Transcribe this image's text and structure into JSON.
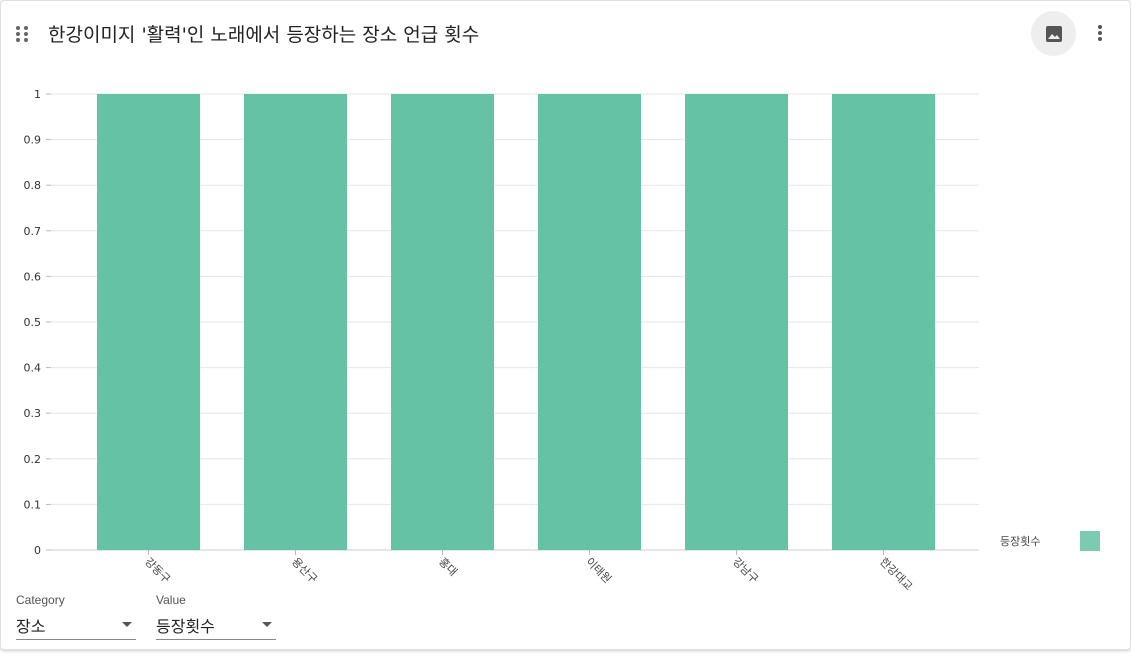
{
  "header": {
    "title": "한강이미지 '활력'인 노래에서 등장하는 장소 언급 횟수"
  },
  "controls": {
    "category_label": "Category",
    "category_value": "장소",
    "value_label": "Value",
    "value_value": "등장횟수"
  },
  "chart_data": {
    "type": "bar",
    "categories": [
      "강동구",
      "용산구",
      "홍대",
      "이태원",
      "강남구",
      "한강대교"
    ],
    "series": [
      {
        "name": "등장횟수",
        "values": [
          1,
          1,
          1,
          1,
          1,
          1
        ],
        "color": "#66c2a5"
      }
    ],
    "yticks": [
      "0",
      "0.1",
      "0.2",
      "0.3",
      "0.4",
      "0.5",
      "0.6",
      "0.7",
      "0.8",
      "0.9",
      "1"
    ],
    "ylim": [
      0,
      1
    ],
    "grid": true,
    "legend": "bottom-right"
  }
}
